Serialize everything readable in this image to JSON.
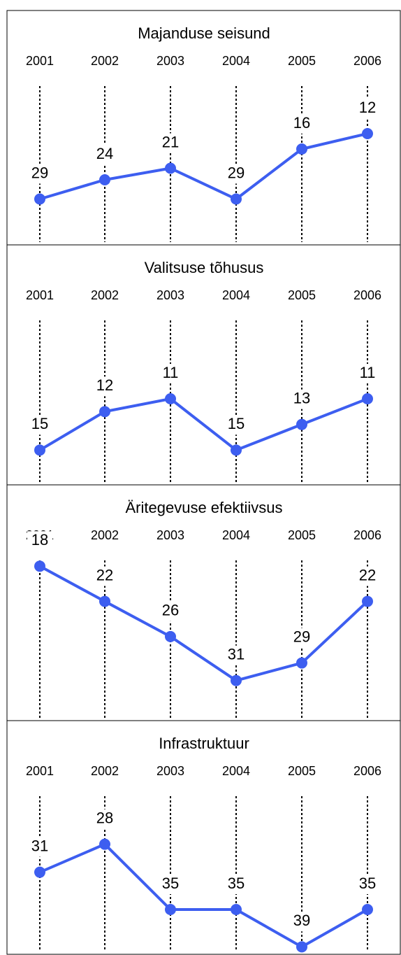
{
  "chart_data": [
    {
      "type": "line",
      "title": "Majanduse seisund",
      "categories": [
        "2001",
        "2002",
        "2003",
        "2004",
        "2005",
        "2006"
      ],
      "values": [
        29,
        24,
        21,
        29,
        16,
        12
      ],
      "color": "#3d5ef0",
      "ylim": [
        0,
        40
      ],
      "inverted": true
    },
    {
      "type": "line",
      "title": "Valitsuse tõhusus",
      "categories": [
        "2001",
        "2002",
        "2003",
        "2004",
        "2005",
        "2006"
      ],
      "values": [
        15,
        12,
        11,
        15,
        13,
        11
      ],
      "color": "#3d5ef0",
      "ylim": [
        5,
        17
      ],
      "inverted": true
    },
    {
      "type": "line",
      "title": "Äritegevuse efektiivsus",
      "categories": [
        "2001",
        "2002",
        "2003",
        "2004",
        "2005",
        "2006"
      ],
      "values": [
        18,
        22,
        26,
        31,
        29,
        22
      ],
      "color": "#3d5ef0",
      "ylim": [
        17.5,
        35
      ],
      "inverted": true
    },
    {
      "type": "line",
      "title": "Infrastruktuur",
      "categories": [
        "2001",
        "2002",
        "2003",
        "2004",
        "2005",
        "2006"
      ],
      "values": [
        31,
        28,
        35,
        35,
        39,
        35
      ],
      "color": "#3d5ef0",
      "ylim": [
        23,
        39.5
      ],
      "inverted": true
    }
  ]
}
